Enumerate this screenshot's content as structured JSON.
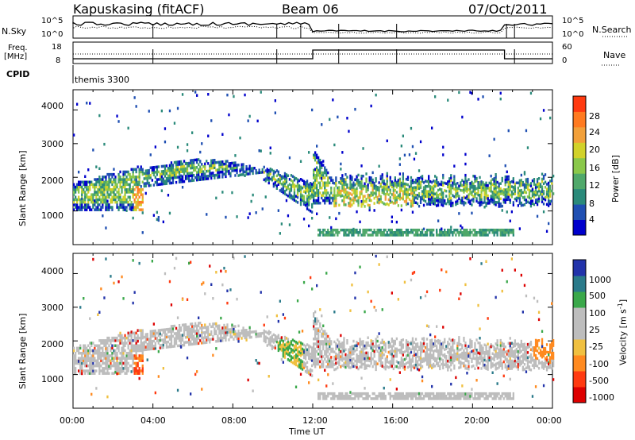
{
  "header": {
    "station": "Kapuskasing (fitACF)",
    "beam": "Beam 06",
    "date": "07/Oct/2011"
  },
  "noise_panel": {
    "left_label": "N.Sky",
    "left_ticks": [
      "10^5",
      "10^0"
    ],
    "right_ticks": [
      "10^5",
      "10^0"
    ],
    "right_label": "N.Search"
  },
  "freq_panel": {
    "left_label_1": "Freq.",
    "left_label_2": "[MHz]",
    "left_ticks": [
      "18",
      "8"
    ],
    "right_ticks": [
      "60",
      "0"
    ],
    "right_label": "Nave",
    "cpid_label": "CPID",
    "cpid_value": "themis 3300"
  },
  "chart_data": [
    {
      "type": "heatmap",
      "panel": "power",
      "ylabel": "Slant Range [km]",
      "yticks": [
        "4000",
        "3000",
        "2000",
        "1000"
      ],
      "colorbar_label": "Power [dB]",
      "colorbar_ticks": [
        "28",
        "24",
        "20",
        "16",
        "12",
        "8",
        "4"
      ],
      "colors": [
        "#0000cc",
        "#1f4fb2",
        "#2a8a7a",
        "#4fa86a",
        "#8ac84a",
        "#d2d22a",
        "#f2a03a",
        "#ff7a20",
        "#ff3a10"
      ]
    },
    {
      "type": "heatmap",
      "panel": "velocity",
      "ylabel": "Slant Range [km]",
      "yticks": [
        "4000",
        "3000",
        "2000",
        "1000"
      ],
      "colorbar_label": "Velocity [m s^-1]",
      "colorbar_ticks": [
        "1000",
        "500",
        "100",
        "25",
        "-25",
        "-100",
        "-500",
        "-1000"
      ],
      "colors": [
        "#2233aa",
        "#2a7a8a",
        "#3aa84a",
        "#bdbdbd",
        "#bdbdbd",
        "#f0c040",
        "#ff8a20",
        "#ff3a10",
        "#dd0000"
      ],
      "xlabel": "Time UT",
      "xticks": [
        "00:00",
        "04:00",
        "08:00",
        "12:00",
        "16:00",
        "20:00",
        "00:00"
      ]
    }
  ]
}
